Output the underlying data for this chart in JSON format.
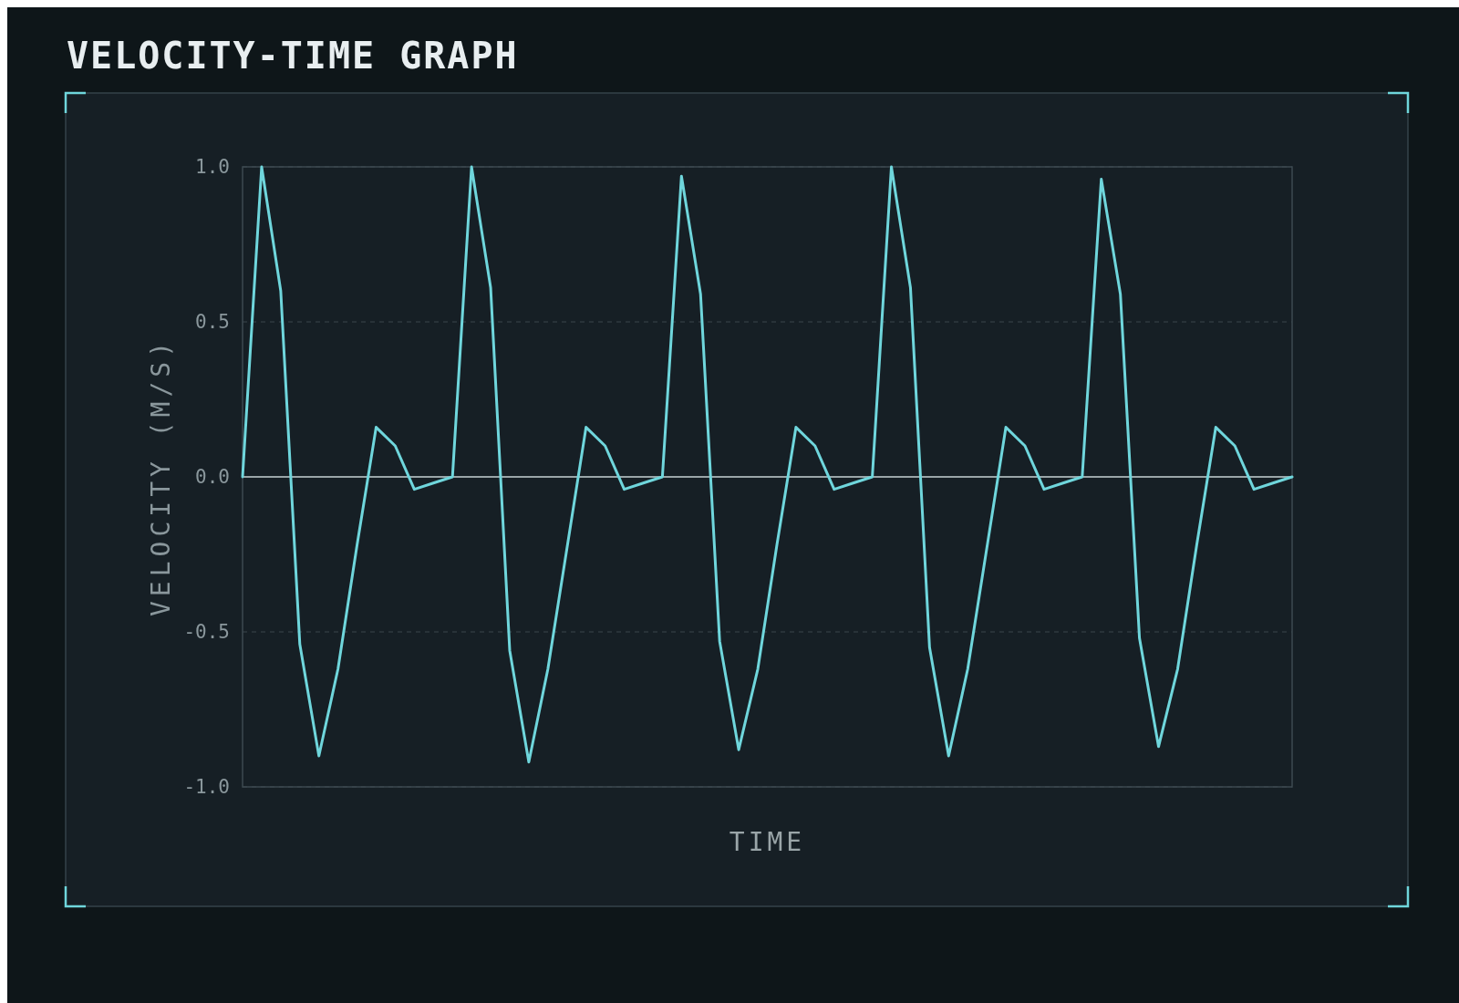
{
  "chart_data": {
    "type": "line",
    "title": "VELOCITY-TIME GRAPH",
    "xlabel": "TIME",
    "ylabel": "VELOCITY (M/S)",
    "categories": [
      null,
      null,
      null,
      null,
      null,
      null,
      null,
      null,
      null,
      null,
      null,
      null,
      null,
      null,
      null,
      null,
      null,
      null,
      null,
      null,
      null,
      null,
      null,
      null,
      null,
      null,
      null,
      null,
      null,
      null,
      null,
      null,
      null,
      null,
      null,
      null,
      null,
      null,
      null,
      null,
      null,
      null,
      null,
      null,
      null,
      null,
      null,
      null,
      null,
      null,
      null,
      null,
      null,
      null,
      null,
      null
    ],
    "series": [
      {
        "color": "#6fd6dc",
        "values": [
          0,
          1.0,
          0.6,
          -0.54,
          -0.9,
          -0.62,
          -0.22,
          0.16,
          0.1,
          -0.04,
          -0.02,
          0,
          1.0,
          0.61,
          -0.56,
          -0.92,
          -0.62,
          -0.23,
          0.16,
          0.1,
          -0.04,
          -0.02,
          0,
          0.97,
          0.59,
          -0.53,
          -0.88,
          -0.62,
          -0.22,
          0.16,
          0.1,
          -0.04,
          -0.02,
          0,
          1.0,
          0.61,
          -0.55,
          -0.9,
          -0.62,
          -0.23,
          0.16,
          0.1,
          -0.04,
          -0.02,
          0,
          0.96,
          0.59,
          -0.52,
          -0.87,
          -0.62,
          -0.22,
          0.16,
          0.1,
          -0.04,
          -0.02,
          0
        ]
      }
    ],
    "ylim": [
      -1,
      1
    ],
    "yticks": [
      {
        "value": -1,
        "label": "-1.0"
      },
      {
        "value": -0.5,
        "label": "-0.5"
      },
      {
        "value": 0,
        "label": "0.0"
      },
      {
        "value": 0.5,
        "label": "0.5"
      },
      {
        "value": 1,
        "label": "1.0"
      }
    ],
    "tick_labels": "y",
    "grid": "y",
    "marker": "none",
    "line_style": "solid",
    "ref_lines": [
      {
        "axis": "y",
        "value": 0,
        "color": "#9aa5a8"
      }
    ]
  }
}
